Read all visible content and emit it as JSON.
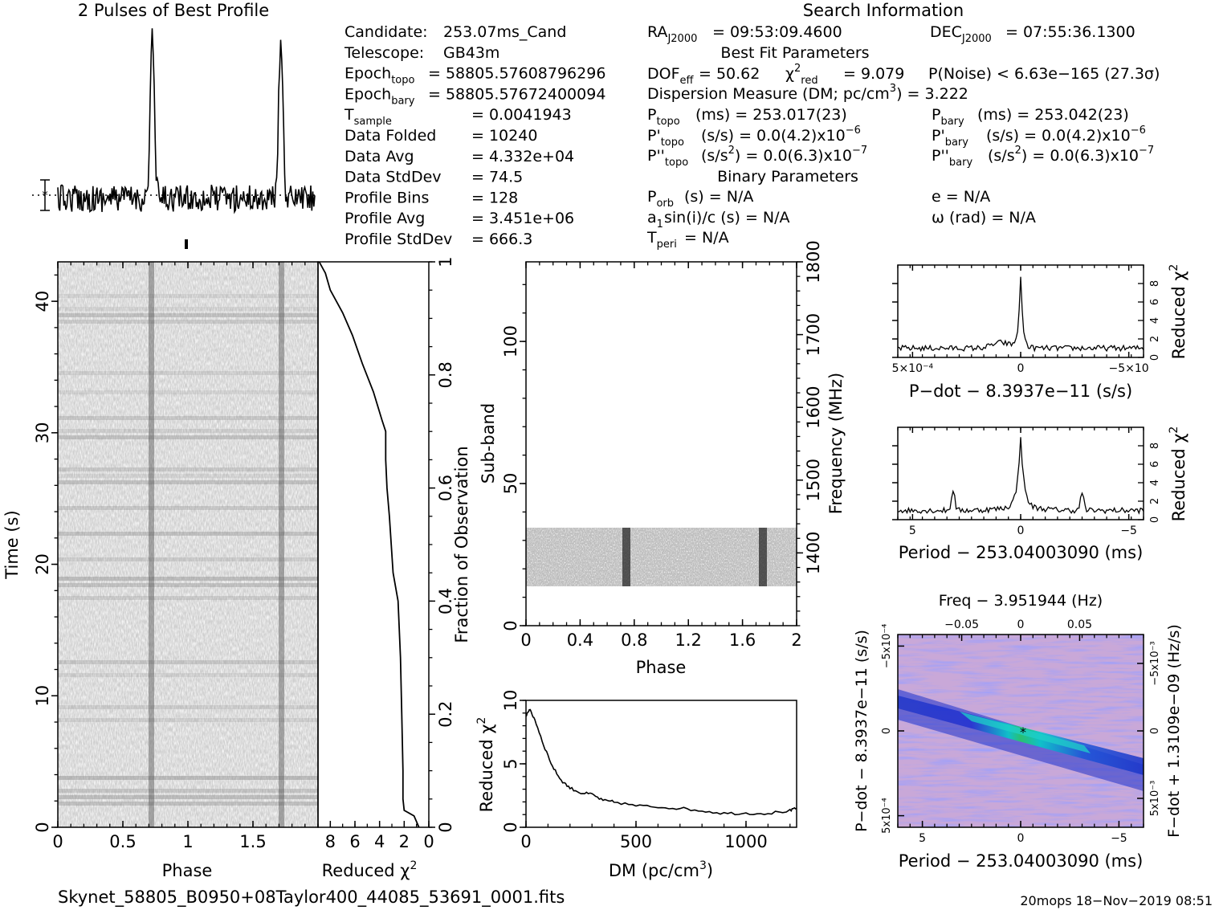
{
  "titles": {
    "profile": "2 Pulses of Best Profile",
    "search": "Search Information",
    "best_fit": "Best Fit Parameters",
    "binary": "Binary Parameters"
  },
  "info_left": [
    {
      "label": "Candidate:",
      "value": "253.07ms_Cand"
    },
    {
      "label": "Telescope:",
      "value": "GB43m"
    },
    {
      "label": "Epoch_topo",
      "value": "= 58805.57608796296"
    },
    {
      "label": "Epoch_bary",
      "value": "= 58805.57672400094"
    },
    {
      "label": "T_sample",
      "value": "= 0.0041943"
    },
    {
      "label": "Data Folded",
      "value": "= 10240"
    },
    {
      "label": "Data Avg",
      "value": "= 4.332e+04"
    },
    {
      "label": "Data StdDev",
      "value": "= 74.5"
    },
    {
      "label": "Profile Bins",
      "value": "= 128"
    },
    {
      "label": "Profile Avg",
      "value": "= 3.451e+06"
    },
    {
      "label": "Profile StdDev",
      "value": "= 666.3"
    }
  ],
  "info_right": {
    "ra": "= 09:53:09.4600",
    "dec": "= 07:55:36.1300",
    "dof": "= 50.62",
    "chi2red": "= 9.079",
    "pnoise": "P(Noise) < 6.63e−165  (27.3σ)",
    "dm": "Dispersion Measure (DM; pc/cm",
    "dm_value": ") = 3.222",
    "p_topo": "(ms) =  253.017(23)",
    "p_bary": "(ms) =  253.042(23)",
    "pd_topo": "(s/s) = 0.0(4.2)x10",
    "pd_bary": "(s/s) = 0.0(4.2)x10",
    "pd_exp": "−6",
    "pdd_topo": "(s/s",
    "pdd_bary": "(s/s",
    "pdd_tail": ") = 0.0(6.3)x10",
    "pdd_exp": "−7",
    "p_orb": "(s) = N/A",
    "e": "e = N/A",
    "a1sini": "sin(i)/c (s) = N/A",
    "omega": "ω (rad) = N/A",
    "t_peri": "= N/A"
  },
  "footer": {
    "filename": "Skynet_58805_B0950+08Taylor400_44085_53691_0001.fits",
    "stamp": "20mops 18−Nov−2019 08:51"
  },
  "chart_data": [
    {
      "type": "line",
      "name": "profile",
      "title": "2 Pulses of Best Profile",
      "x_range": [
        0,
        2
      ],
      "peaks_phase": [
        0.735,
        1.735
      ],
      "baseline": "noise"
    },
    {
      "type": "heatmap",
      "name": "time-phase",
      "xlabel": "Phase",
      "ylabel": "Time (s)",
      "xlim": [
        0,
        2
      ],
      "ylim": [
        0,
        43
      ],
      "x_ticks": [
        "0",
        "0.5",
        "1",
        "1.5"
      ],
      "y_ticks": [
        "0",
        "10",
        "20",
        "30",
        "40"
      ],
      "pulse_phase": [
        0.735,
        1.735
      ],
      "colormap": "grayscale"
    },
    {
      "type": "line",
      "name": "cumulative-chi2",
      "xlabel": "Reduced χ²",
      "ylabel": "Fraction of Observation",
      "xlim": [
        9,
        0
      ],
      "ylim": [
        0,
        1
      ],
      "x_ticks": [
        "8",
        "6",
        "4",
        "2",
        "0"
      ],
      "y_ticks": [
        "0",
        "0.2",
        "0.4",
        "0.6",
        "0.8",
        "1"
      ],
      "points": [
        [
          0.8,
          0
        ],
        [
          1.2,
          0.02
        ],
        [
          2.0,
          0.03
        ],
        [
          2.1,
          0.05
        ],
        [
          2.1,
          0.1
        ],
        [
          2.2,
          0.2
        ],
        [
          2.3,
          0.3
        ],
        [
          2.5,
          0.4
        ],
        [
          2.9,
          0.45
        ],
        [
          3.2,
          0.55
        ],
        [
          3.4,
          0.6
        ],
        [
          3.5,
          0.65
        ],
        [
          3.5,
          0.7
        ],
        [
          3.8,
          0.72
        ],
        [
          4.5,
          0.77
        ],
        [
          5.4,
          0.82
        ],
        [
          6.2,
          0.87
        ],
        [
          7.0,
          0.91
        ],
        [
          8.0,
          0.95
        ],
        [
          8.4,
          0.98
        ],
        [
          8.9,
          1.0
        ]
      ]
    },
    {
      "type": "heatmap",
      "name": "subband-phase",
      "xlabel": "Phase",
      "ylabel": "Sub-band",
      "y2label": "Frequency (MHz)",
      "xlim": [
        0,
        2
      ],
      "ylim": [
        0,
        128
      ],
      "y2lim": [
        1300,
        1800
      ],
      "x_ticks": [
        "0",
        "0.4",
        "0.8",
        "1.2",
        "1.6",
        "2"
      ],
      "y_ticks": [
        "0",
        "50",
        "100"
      ],
      "y2_ticks": [
        "1400",
        "1500",
        "1600",
        "1700",
        "1800"
      ],
      "data_band_subbands": [
        14,
        35
      ],
      "pulse_phase": [
        0.735,
        1.735
      ]
    },
    {
      "type": "line",
      "name": "dm-curve",
      "xlabel": "DM (pc/cm³)",
      "ylabel": "Reduced χ²",
      "xlim": [
        0,
        1230
      ],
      "ylim": [
        0,
        10
      ],
      "x_ticks": [
        "0",
        "500",
        "1000"
      ],
      "y_ticks": [
        "0",
        "5",
        "10"
      ],
      "points": [
        [
          0,
          8.8
        ],
        [
          15,
          9.3
        ],
        [
          40,
          8.5
        ],
        [
          80,
          6.5
        ],
        [
          120,
          4.8
        ],
        [
          160,
          3.7
        ],
        [
          200,
          3.1
        ],
        [
          250,
          2.7
        ],
        [
          300,
          2.6
        ],
        [
          350,
          2.1
        ],
        [
          400,
          2.0
        ],
        [
          500,
          1.7
        ],
        [
          600,
          1.6
        ],
        [
          700,
          1.5
        ],
        [
          800,
          1.3
        ],
        [
          900,
          1.1
        ],
        [
          1000,
          1.1
        ],
        [
          1100,
          1.1
        ],
        [
          1200,
          1.3
        ],
        [
          1230,
          1.5
        ]
      ]
    },
    {
      "type": "line",
      "name": "pdot-chi2",
      "xlabel": "P−dot − 8.3937e−11 (s/s)",
      "ylabel": "Reduced χ²",
      "x_ticks": [
        "5×10⁻⁴",
        "0",
        "−5×10"
      ],
      "y_ticks": [
        "0",
        "2",
        "4",
        "6",
        "8"
      ],
      "ylim": [
        0,
        10
      ],
      "peak": 9.0,
      "baseline": 1.0
    },
    {
      "type": "line",
      "name": "period-chi2",
      "xlabel": "Period − 253.04003090 (ms)",
      "ylabel": "Reduced χ²",
      "x_ticks": [
        "5",
        "0",
        "−5"
      ],
      "y_ticks": [
        "0",
        "2",
        "4",
        "6",
        "8"
      ],
      "xlim": [
        6,
        -6
      ],
      "ylim": [
        0,
        10
      ],
      "peak": 9.1,
      "side_peaks": [
        [
          3.3,
          3.3
        ],
        [
          -3.0,
          3.0
        ]
      ]
    },
    {
      "type": "heatmap",
      "name": "p-pdot-plane",
      "title": "Freq − 3.951944 (Hz)",
      "xlabel": "Period − 253.04003090 (ms)",
      "ylabel": "P−dot − 8.3937e−11 (s/s)",
      "y2label": "F−dot + 1.3109e−09 (Hz/s)",
      "x_ticks": [
        "5",
        "0",
        "−5"
      ],
      "x2_ticks": [
        "−0.05",
        "0",
        "0.05"
      ],
      "y_ticks": [
        "5x10⁻⁴",
        "0",
        "−5x10⁻⁴"
      ],
      "y2_ticks": [
        "5x10⁻³",
        "0",
        "−5x10⁻³"
      ],
      "colormap": "blue-cyan-green"
    }
  ]
}
